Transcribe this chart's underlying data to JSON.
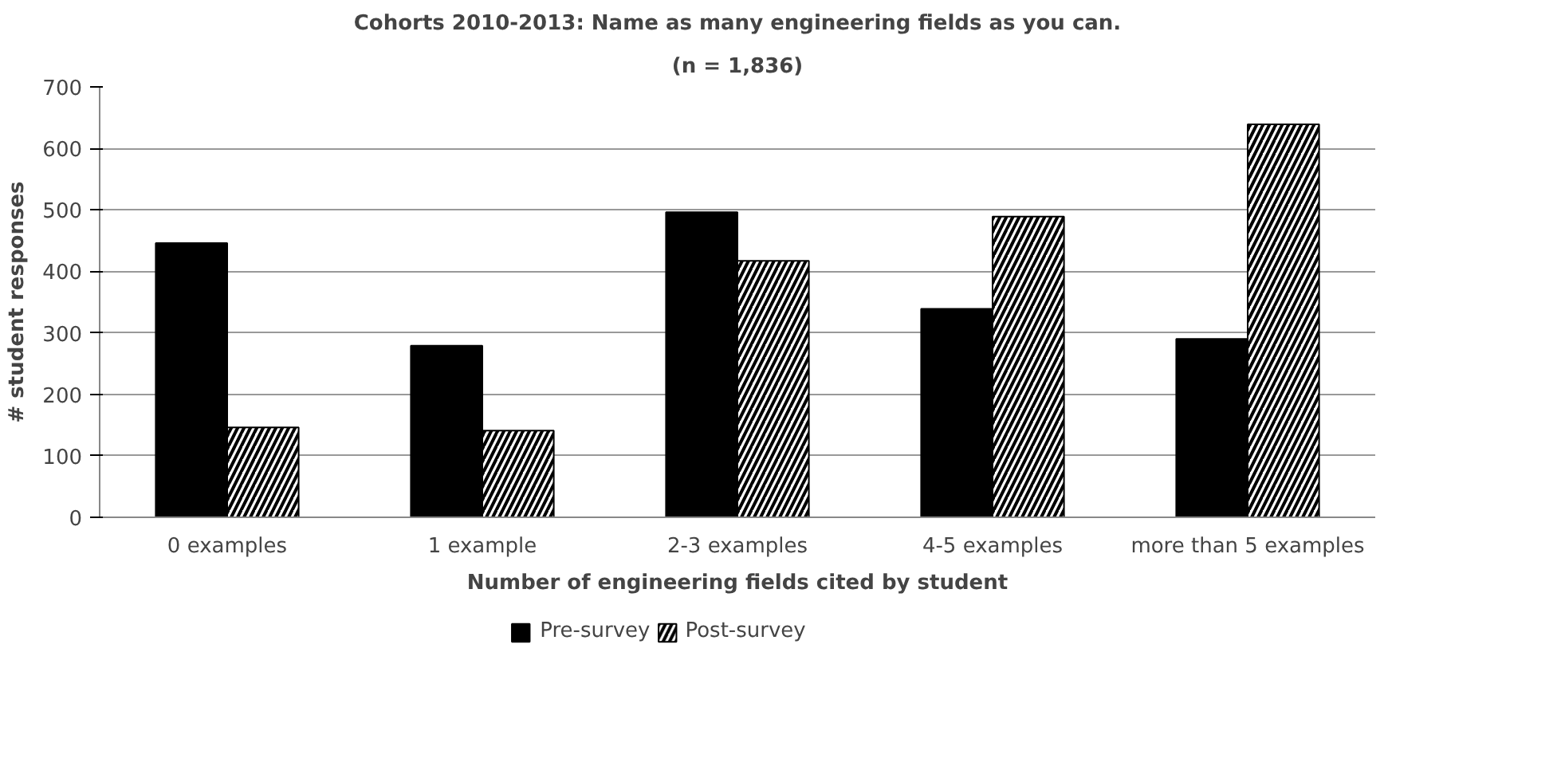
{
  "chart_data": {
    "type": "bar",
    "title": "Cohorts 2010-2013: Name as many engineering fields as you can.",
    "subtitle": "(n = 1,836)",
    "xlabel": "Number of engineering fields cited by student",
    "ylabel": "# student responses",
    "categories": [
      "0 examples",
      "1 example",
      "2-3 examples",
      "4-5 examples",
      "more than 5 examples"
    ],
    "series": [
      {
        "name": "Pre-survey",
        "color": "#000000",
        "values": [
          446,
          279,
          496,
          339,
          290
        ]
      },
      {
        "name": "Post-survey",
        "color": "#ffffff",
        "values": [
          146,
          141,
          417,
          489,
          639
        ]
      }
    ],
    "ylim": [
      0,
      700
    ],
    "yticks": [
      0,
      100,
      200,
      300,
      400,
      500,
      600,
      700
    ],
    "grid": "y",
    "legend": "bottom"
  }
}
